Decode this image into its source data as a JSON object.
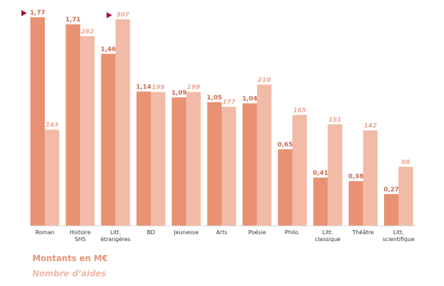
{
  "chart_data": {
    "type": "bar",
    "categories": [
      [
        "Roman"
      ],
      [
        "Histoire",
        "SHS"
      ],
      [
        "Litt.",
        "étrangères"
      ],
      [
        "BD"
      ],
      [
        "Jeunesse"
      ],
      [
        "Arts"
      ],
      [
        "Poésie"
      ],
      [
        "Philo."
      ],
      [
        "Litt.",
        "classique"
      ],
      [
        "Théâtre"
      ],
      [
        "Litt.",
        "scientifique"
      ]
    ],
    "series": [
      {
        "name": "Montants en M€",
        "values": [
          1.77,
          1.71,
          1.46,
          1.14,
          1.09,
          1.05,
          1.04,
          0.65,
          0.41,
          0.38,
          0.27
        ],
        "labels": [
          "1,77",
          "1,71",
          "1,46",
          "1,14",
          "1,09",
          "1,05",
          "1,04",
          "0,65",
          "0,41",
          "0,38",
          "0,27"
        ],
        "color": "#e99273"
      },
      {
        "name": "Nombre d'aides",
        "values": [
          143,
          282,
          307,
          199,
          199,
          177,
          210,
          165,
          151,
          142,
          88
        ],
        "labels": [
          "143",
          "282",
          "307",
          "199",
          "199",
          "177",
          "210",
          "165",
          "151",
          "142",
          "88"
        ],
        "color": "#f1bba8"
      }
    ],
    "markers": [
      {
        "series": 0,
        "index": 0
      },
      {
        "series": 1,
        "index": 2
      }
    ],
    "marker_color": "#9b1b30",
    "ylim_series_a": [
      0,
      1.77
    ],
    "ylim_series_b": [
      0,
      307
    ],
    "grid": false,
    "legend_position": "bottom-left"
  },
  "legend": {
    "a": "Montants en M€",
    "b": "Nombre d’aides"
  }
}
